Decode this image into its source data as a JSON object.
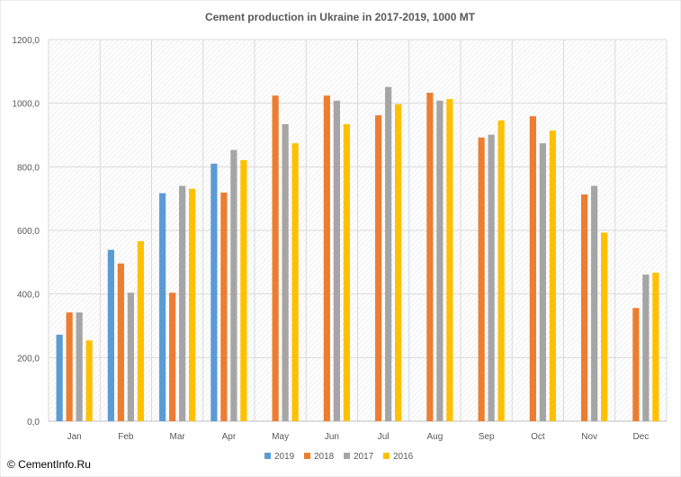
{
  "chart_data": {
    "type": "bar",
    "title": "Cement production in Ukraine in 2017-2019, 1000 MT",
    "xlabel": "",
    "ylabel": "",
    "categories": [
      "Jan",
      "Feb",
      "Mar",
      "Apr",
      "May",
      "Jun",
      "Jul",
      "Aug",
      "Sep",
      "Oct",
      "Nov",
      "Dec"
    ],
    "ylim": [
      0,
      1200
    ],
    "yticks": [
      0,
      200,
      400,
      600,
      800,
      1000,
      1200
    ],
    "ytick_labels": [
      "0,0",
      "200,0",
      "400,0",
      "600,0",
      "800,0",
      "1000,0",
      "1200,0"
    ],
    "grid": true,
    "legend_position": "bottom",
    "series": [
      {
        "name": "2019",
        "color": "#5b9bd5",
        "values": [
          272,
          539,
          717,
          810,
          null,
          null,
          null,
          null,
          null,
          null,
          null,
          null
        ]
      },
      {
        "name": "2018",
        "color": "#ed7d31",
        "values": [
          342,
          496,
          404,
          719,
          1024,
          1024,
          962,
          1033,
          892,
          959,
          713,
          356
        ]
      },
      {
        "name": "2017",
        "color": "#a5a5a5",
        "values": [
          342,
          404,
          740,
          853,
          934,
          1008,
          1051,
          1008,
          901,
          874,
          740,
          461
        ]
      },
      {
        "name": "2016",
        "color": "#ffc000",
        "values": [
          254,
          566,
          731,
          821,
          874,
          934,
          997,
          1013,
          946,
          914,
          593,
          467
        ]
      }
    ]
  },
  "watermark": "© CementInfo.Ru"
}
